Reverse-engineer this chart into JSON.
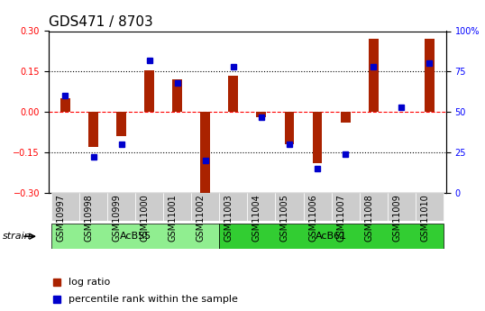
{
  "title": "GDS471 / 8703",
  "samples": [
    "GSM10997",
    "GSM10998",
    "GSM10999",
    "GSM11000",
    "GSM11001",
    "GSM11002",
    "GSM11003",
    "GSM11004",
    "GSM11005",
    "GSM11006",
    "GSM11007",
    "GSM11008",
    "GSM11009",
    "GSM11010"
  ],
  "log_ratio": [
    0.05,
    -0.13,
    -0.09,
    0.155,
    0.12,
    -0.3,
    0.135,
    -0.02,
    -0.12,
    -0.19,
    -0.04,
    0.27,
    0.0,
    0.27
  ],
  "percentile": [
    60,
    22,
    30,
    82,
    68,
    20,
    78,
    47,
    30,
    15,
    24,
    78,
    53,
    80
  ],
  "groups": [
    {
      "label": "AcB55",
      "start": 0,
      "end": 6,
      "color": "#90EE90"
    },
    {
      "label": "AcB61",
      "start": 6,
      "end": 14,
      "color": "#32CD32"
    }
  ],
  "bar_color": "#AA2200",
  "dot_color": "#0000CC",
  "ylim": [
    -0.3,
    0.3
  ],
  "y2lim": [
    0,
    100
  ],
  "yticks": [
    -0.3,
    -0.15,
    0.0,
    0.15,
    0.3
  ],
  "y2ticks": [
    0,
    25,
    50,
    75,
    100
  ],
  "hline_positions": [
    -0.15,
    0.0,
    0.15
  ],
  "hline_styles": [
    "dotted",
    "dashed",
    "dotted"
  ],
  "strain_label": "strain",
  "legend_items": [
    "log ratio",
    "percentile rank within the sample"
  ],
  "title_fontsize": 11,
  "tick_fontsize": 7,
  "label_fontsize": 8
}
